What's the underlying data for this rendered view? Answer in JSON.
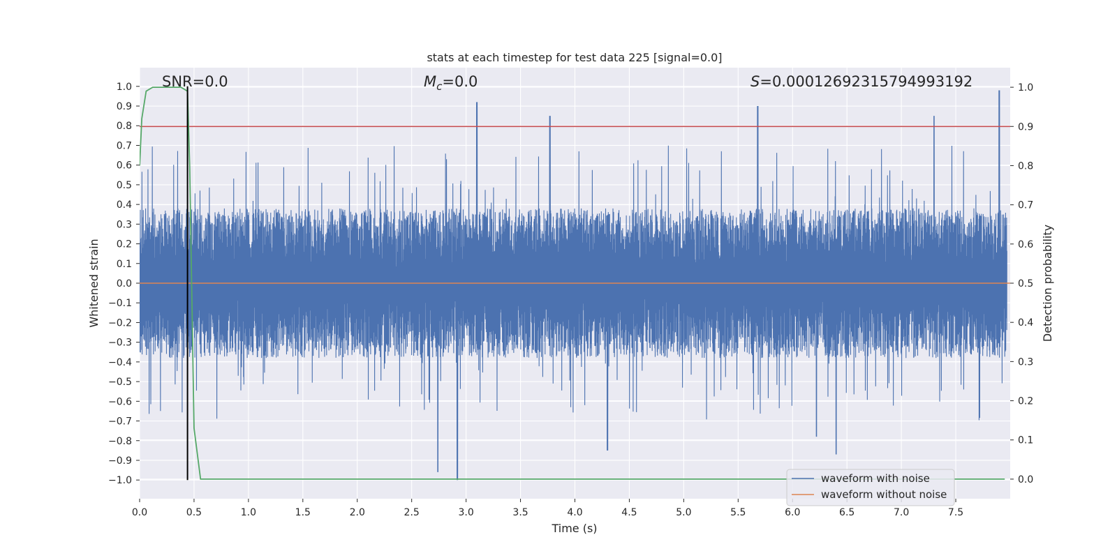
{
  "chart_data": {
    "type": "line",
    "title": "stats at each timestep for test data 225 [signal=0.0]",
    "xlabel": "Time (s)",
    "ylabel": "Whitened strain",
    "y2label": "Detection probability",
    "xlim": [
      0.0,
      8.0
    ],
    "ylim": [
      -1.095,
      1.095
    ],
    "y2lim": [
      -0.05,
      1.05
    ],
    "x_ticks": [
      "0.0",
      "0.5",
      "1.0",
      "1.5",
      "2.0",
      "2.5",
      "3.0",
      "3.5",
      "4.0",
      "4.5",
      "5.0",
      "5.5",
      "6.0",
      "6.5",
      "7.0",
      "7.5"
    ],
    "y_ticks": [
      "1.0",
      "0.9",
      "0.8",
      "0.7",
      "0.6",
      "0.5",
      "0.4",
      "0.3",
      "0.2",
      "0.1",
      "0.0",
      "−0.1",
      "−0.2",
      "−0.3",
      "−0.4",
      "−0.5",
      "−0.6",
      "−0.7",
      "−0.8",
      "−0.9",
      "−1.0"
    ],
    "y2_ticks": [
      "1.0",
      "0.9",
      "0.8",
      "0.7",
      "0.6",
      "0.5",
      "0.4",
      "0.3",
      "0.2",
      "0.1",
      "0.0"
    ],
    "annotations": {
      "snr": "SNR=0.0",
      "mc_symbol": "M",
      "mc_sub": "c",
      "mc_value": "=0.0",
      "s_symbol": "S",
      "s_value": "=0.00012692315794993192"
    },
    "series": [
      {
        "name": "waveform with noise",
        "color": "#4c72b0",
        "style": "noisy waveform, amplitude envelope ~0.35 with peaks up to ~1.0",
        "peaks_max": [
          [
            3.1,
            0.92
          ],
          [
            7.9,
            0.98
          ],
          [
            5.68,
            0.9
          ],
          [
            3.77,
            0.85
          ],
          [
            7.3,
            0.85
          ]
        ],
        "peaks_min": [
          [
            2.92,
            -1.0
          ],
          [
            2.74,
            -0.96
          ],
          [
            6.4,
            -0.87
          ],
          [
            6.22,
            -0.78
          ],
          [
            4.3,
            -0.85
          ]
        ]
      },
      {
        "name": "waveform without noise",
        "color": "#dd8452",
        "values_constant": 0.0
      },
      {
        "name": "threshold",
        "color": "#c44e52",
        "axis": "right",
        "values_constant": 0.9
      },
      {
        "name": "detection probability",
        "color": "#55a868",
        "axis": "right",
        "x": [
          0.0,
          0.02,
          0.06,
          0.12,
          0.2,
          0.3,
          0.38,
          0.44,
          0.46,
          0.5,
          0.56,
          0.6,
          7.95
        ],
        "values": [
          0.8,
          0.92,
          0.99,
          1.0,
          1.0,
          1.0,
          1.0,
          0.99,
          0.8,
          0.13,
          0.0,
          0.0,
          0.0
        ]
      },
      {
        "name": "marker",
        "color": "#000000",
        "x_constant": 0.44
      }
    ],
    "legend": {
      "position": "lower-right",
      "entries": [
        {
          "label": "waveform with noise",
          "color": "#4c72b0"
        },
        {
          "label": "waveform without noise",
          "color": "#dd8452"
        }
      ]
    },
    "grid": true,
    "background": "#eaeaf2"
  }
}
